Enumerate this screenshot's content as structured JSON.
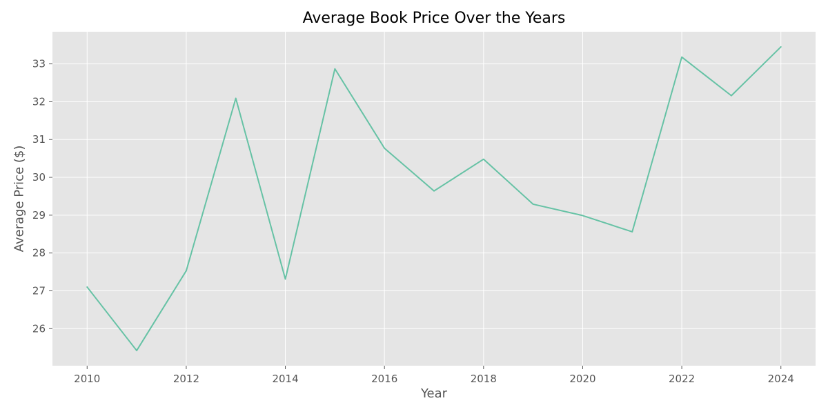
{
  "chart_data": {
    "type": "line",
    "title": "Average Book Price Over the Years",
    "xlabel": "Year",
    "ylabel": "Average Price ($)",
    "x": [
      2010,
      2011,
      2012,
      2013,
      2014,
      2015,
      2016,
      2017,
      2018,
      2019,
      2020,
      2021,
      2022,
      2023,
      2024
    ],
    "series": [
      {
        "values": [
          27.1,
          25.42,
          27.53,
          32.09,
          27.31,
          32.87,
          30.77,
          29.64,
          30.48,
          29.29,
          28.99,
          28.56,
          33.18,
          32.16,
          33.45
        ]
      }
    ],
    "xlim": [
      2009.3,
      2024.7
    ],
    "ylim": [
      25.02,
      33.85
    ],
    "xticks": [
      2010,
      2012,
      2014,
      2016,
      2018,
      2020,
      2022,
      2024
    ],
    "yticks": [
      26,
      27,
      28,
      29,
      30,
      31,
      32,
      33
    ],
    "grid": true,
    "legend": "none",
    "colors": {
      "line": "#66c2a5",
      "plot_background": "#e5e5e5",
      "grid": "#ffffff",
      "tick_text": "#555555"
    }
  }
}
